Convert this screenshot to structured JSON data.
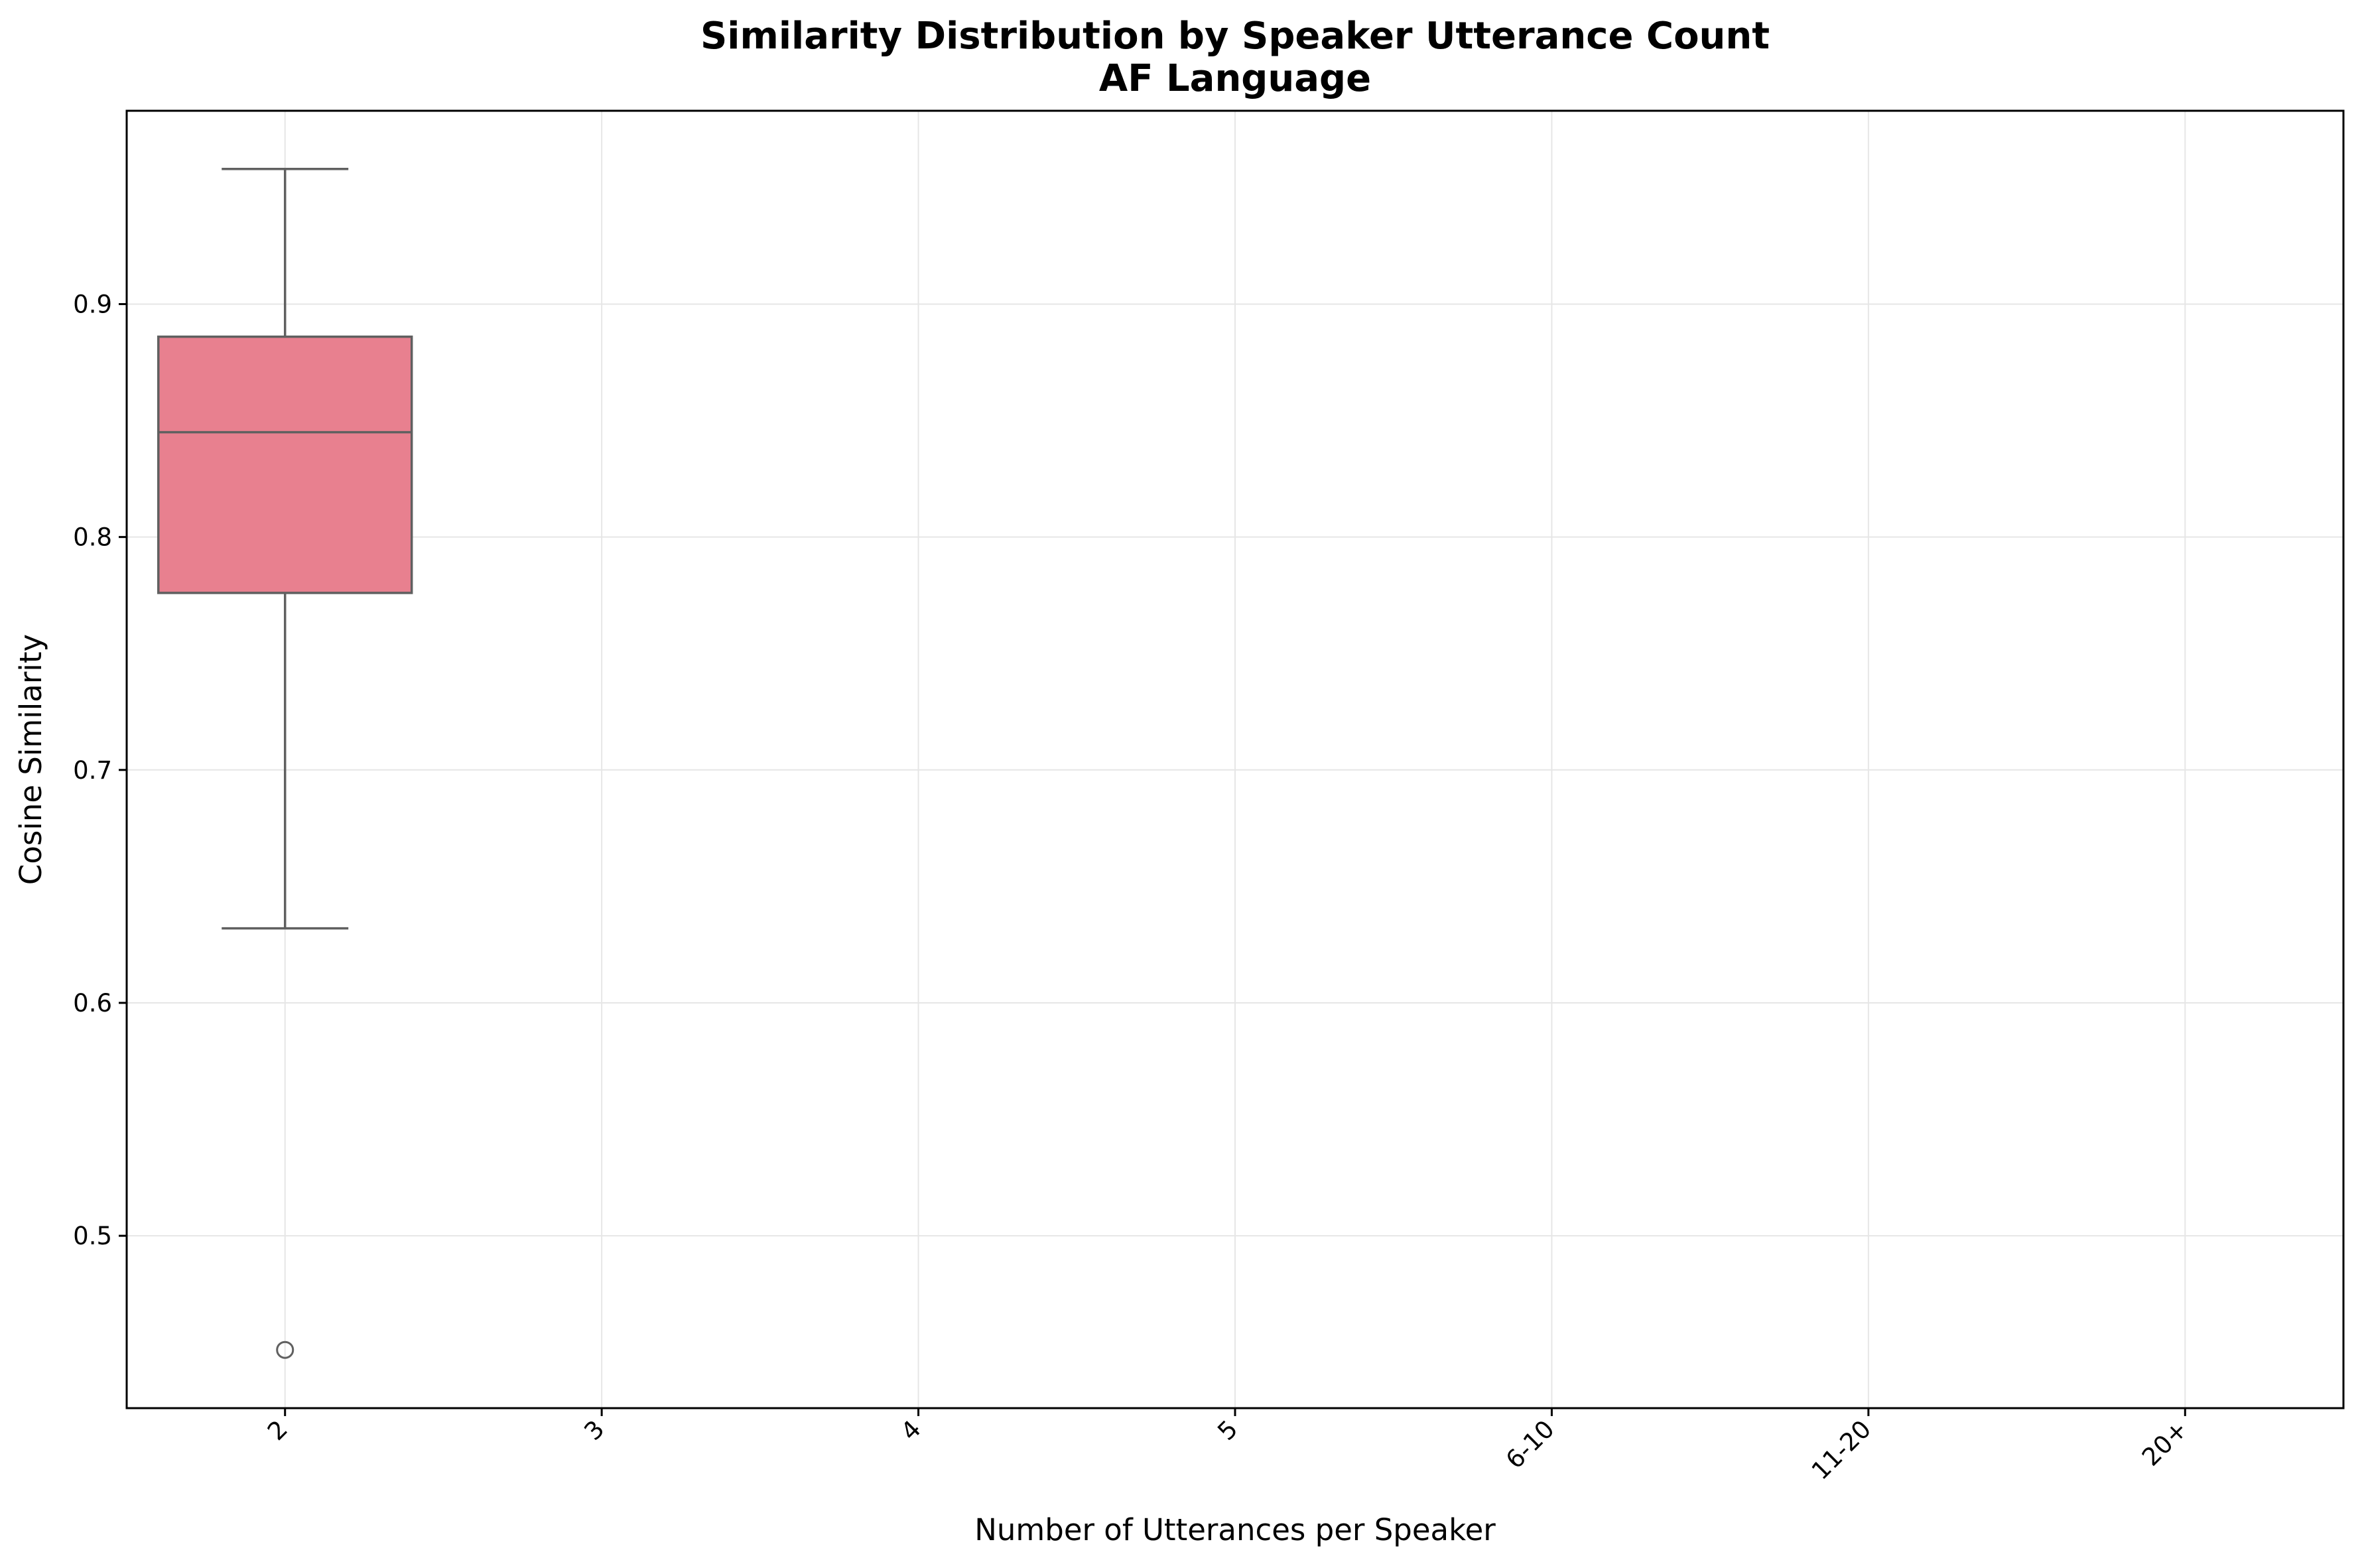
{
  "chart_data": {
    "type": "box",
    "title": "Similarity Distribution by Speaker Utterance Count",
    "subtitle": "AF Language",
    "xlabel": "Number of Utterances per Speaker",
    "ylabel": "Cosine Similarity",
    "categories": [
      "2",
      "3",
      "4",
      "5",
      "6-10",
      "11-20",
      "20+"
    ],
    "ylim": [
      0.426,
      0.983
    ],
    "yticks": [
      0.5,
      0.6,
      0.7,
      0.8,
      0.9
    ],
    "ytick_labels": [
      "0.5",
      "0.6",
      "0.7",
      "0.8",
      "0.9"
    ],
    "grid": true,
    "boxes": [
      {
        "category": "2",
        "whisker_low": 0.632,
        "q1": 0.776,
        "median": 0.845,
        "q3": 0.886,
        "whisker_high": 0.958,
        "outliers": [
          0.451
        ],
        "color": "#e8808f"
      }
    ],
    "colors": {
      "box_edge": "#606060",
      "grid": "#e6e6e6",
      "axes": "#000000"
    }
  }
}
